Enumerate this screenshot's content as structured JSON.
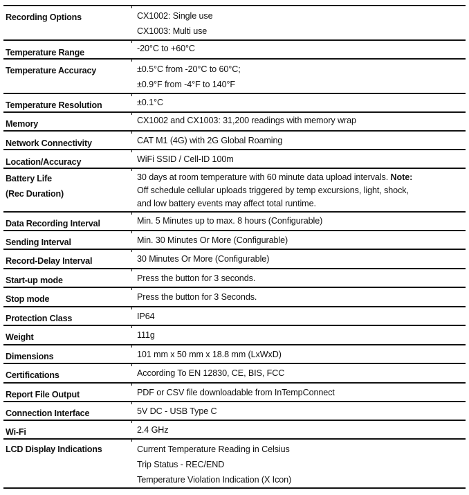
{
  "rows": [
    {
      "label": [
        "Recording Options"
      ],
      "value": [
        "CX1002: Single use",
        "CX1003: Multi use"
      ]
    },
    {
      "label": [
        "Temperature Range"
      ],
      "value": [
        "-20°C to +60°C"
      ]
    },
    {
      "label": [
        "Temperature Accuracy"
      ],
      "value": [
        "±0.5°C from -20°C to 60°C;",
        "±0.9°F from -4°F to 140°F"
      ]
    },
    {
      "label": [
        "Temperature Resolution"
      ],
      "value": [
        "±0.1°C"
      ]
    },
    {
      "label": [
        "Memory"
      ],
      "value": [
        "CX1002 and CX1003: 31,200 readings with memory wrap"
      ]
    },
    {
      "label": [
        "Network Connectivity"
      ],
      "value": [
        "CAT M1 (4G) with 2G Global Roaming"
      ]
    },
    {
      "label": [
        "Location/Accuracy"
      ],
      "value": [
        "WiFi SSID / Cell-ID 100m"
      ]
    },
    {
      "label": [
        "Battery Life",
        "(Rec Duration)"
      ],
      "value": [
        "30 days at room temperature with 60 minute data upload intervals.",
        "Off schedule cellular uploads triggered by temp excursions, light, shock,",
        "and low battery events may affect total runtime."
      ],
      "note_label": "Note:"
    },
    {
      "label": [
        "Data Recording Interval"
      ],
      "value": [
        "Min. 5 Minutes up to max. 8 hours (Configurable)"
      ]
    },
    {
      "label": [
        "Sending Interval"
      ],
      "value": [
        "Min. 30 Minutes Or More (Configurable)"
      ]
    },
    {
      "label": [
        "Record-Delay Interval"
      ],
      "value": [
        "30 Minutes Or More (Configurable)"
      ]
    },
    {
      "label": [
        "Start-up mode"
      ],
      "value": [
        "Press the button for 3 seconds."
      ]
    },
    {
      "label": [
        "Stop mode"
      ],
      "value": [
        "Press the button for 3 Seconds."
      ]
    },
    {
      "label": [
        "Protection Class"
      ],
      "value": [
        "IP64"
      ]
    },
    {
      "label": [
        "Weight"
      ],
      "value": [
        "111g"
      ]
    },
    {
      "label": [
        "Dimensions"
      ],
      "value": [
        "101 mm x 50 mm x 18.8 mm (LxWxD)"
      ]
    },
    {
      "label": [
        "Certifications"
      ],
      "value": [
        "According To EN 12830, CE, BIS, FCC"
      ]
    },
    {
      "label": [
        "Report File Output"
      ],
      "value": [
        "PDF or CSV file downloadable from InTempConnect"
      ]
    },
    {
      "label": [
        "Connection Interface"
      ],
      "value": [
        "5V DC - USB Type C"
      ]
    },
    {
      "label": [
        "Wi-Fi"
      ],
      "value": [
        "2.4 GHz"
      ]
    },
    {
      "label": [
        "LCD Display Indications"
      ],
      "value": [
        "Current Temperature Reading in Celsius",
        "Trip Status - REC/END",
        "Temperature Violation Indication (X Icon)"
      ]
    }
  ]
}
